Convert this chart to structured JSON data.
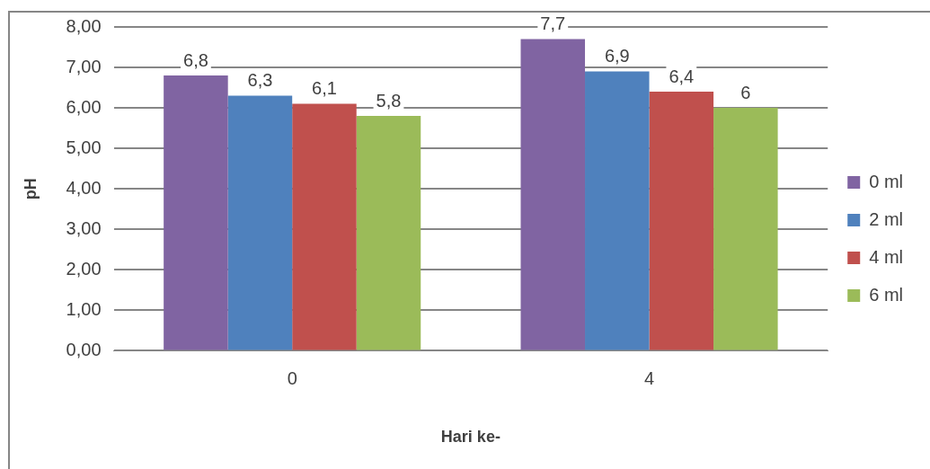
{
  "chart_data": {
    "type": "bar",
    "xlabel": "Hari ke-",
    "ylabel": "pH",
    "categories": [
      "0",
      "4"
    ],
    "series": [
      {
        "name": "0 ml",
        "color": "#8064a2",
        "values": [
          6.8,
          7.7
        ],
        "value_labels": [
          "6,8",
          "7,7"
        ]
      },
      {
        "name": "2 ml",
        "color": "#4f81bd",
        "values": [
          6.3,
          6.9
        ],
        "value_labels": [
          "6,3",
          "6,9"
        ]
      },
      {
        "name": "4 ml",
        "color": "#c0504d",
        "values": [
          6.1,
          6.4
        ],
        "value_labels": [
          "6,1",
          "6,4"
        ]
      },
      {
        "name": "6 ml",
        "color": "#9bbb59",
        "values": [
          5.8,
          6
        ],
        "value_labels": [
          "5,8",
          "6"
        ]
      }
    ],
    "ylim": [
      0,
      8
    ],
    "yticks": [
      {
        "value": 0,
        "label": "0,00"
      },
      {
        "value": 1,
        "label": "1,00"
      },
      {
        "value": 2,
        "label": "2,00"
      },
      {
        "value": 3,
        "label": "3,00"
      },
      {
        "value": 4,
        "label": "4,00"
      },
      {
        "value": 5,
        "label": "5,00"
      },
      {
        "value": 6,
        "label": "6,00"
      },
      {
        "value": 7,
        "label": "7,00"
      },
      {
        "value": 8,
        "label": "8,00"
      }
    ],
    "grid": "y",
    "legend": "right"
  }
}
